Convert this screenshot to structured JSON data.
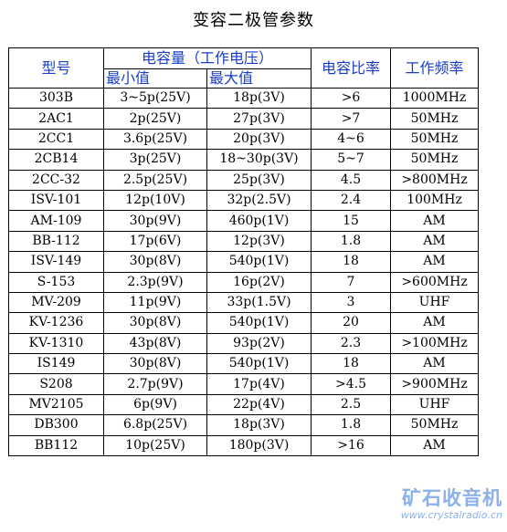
{
  "title": "变容二极管参数",
  "headers": {
    "model": "型号",
    "capacitance": "电容量（工作电压）",
    "min": "最小值",
    "max": "最大值",
    "ratio": "电容比率",
    "freq": "工作频率"
  },
  "rows": [
    {
      "model": "303B",
      "min": "3~5p(25V)",
      "max": "18p(3V)",
      "ratio": ">6",
      "freq": "1000MHz"
    },
    {
      "model": "2AC1",
      "min": "2p(25V)",
      "max": "27p(3V)",
      "ratio": ">7",
      "freq": "50MHz"
    },
    {
      "model": "2CC1",
      "min": "3.6p(25V)",
      "max": "20p(3V)",
      "ratio": "4~6",
      "freq": "50MHz"
    },
    {
      "model": "2CB14",
      "min": "3p(25V)",
      "max": "18~30p(3V)",
      "ratio": "5~7",
      "freq": "50MHz"
    },
    {
      "model": "2CC-32",
      "min": "2.5p(25V)",
      "max": "25p(3V)",
      "ratio": "4.5",
      "freq": ">800MHz"
    },
    {
      "model": "ISV-101",
      "min": "12p(10V)",
      "max": "32p(2.5V)",
      "ratio": "2.4",
      "freq": "100MHz"
    },
    {
      "model": "AM-109",
      "min": "30p(9V)",
      "max": "460p(1V)",
      "ratio": "15",
      "freq": "AM"
    },
    {
      "model": "BB-112",
      "min": "17p(6V)",
      "max": "12p(3V)",
      "ratio": "1.8",
      "freq": "AM"
    },
    {
      "model": "ISV-149",
      "min": "30p(8V)",
      "max": "540p(1V)",
      "ratio": "18",
      "freq": "AM"
    },
    {
      "model": "S-153",
      "min": "2.3p(9V)",
      "max": "16p(2V)",
      "ratio": "7",
      "freq": ">600MHz"
    },
    {
      "model": "MV-209",
      "min": "11p(9V)",
      "max": "33p(1.5V)",
      "ratio": "3",
      "freq": "UHF"
    },
    {
      "model": "KV-1236",
      "min": "30p(8V)",
      "max": "540p(1V)",
      "ratio": "20",
      "freq": "AM"
    },
    {
      "model": "KV-1310",
      "min": "43p(8V)",
      "max": "93p(2V)",
      "ratio": "2.3",
      "freq": ">100MHz"
    },
    {
      "model": "IS149",
      "min": "30p(8V)",
      "max": "540p(1V)",
      "ratio": "18",
      "freq": "AM"
    },
    {
      "model": "S208",
      "min": "2.7p(9V)",
      "max": "17p(4V)",
      "ratio": ">4.5",
      "freq": ">900MHz"
    },
    {
      "model": "MV2105",
      "min": "6p(9V)",
      "max": "22p(4V)",
      "ratio": "2.5",
      "freq": "UHF"
    },
    {
      "model": "DB300",
      "min": "6.8p(25V)",
      "max": "18p(3V)",
      "ratio": "1.8",
      "freq": "50MHz"
    },
    {
      "model": "BB112",
      "min": "10p(25V)",
      "max": "180p(3V)",
      "ratio": ">16",
      "freq": "AM"
    }
  ],
  "watermark": {
    "logo": "矿石收音机",
    "url": "www.crystalradio.cn",
    "color": "#8cb0e8"
  },
  "colors": {
    "header_text": "#1a3ec9"
  }
}
